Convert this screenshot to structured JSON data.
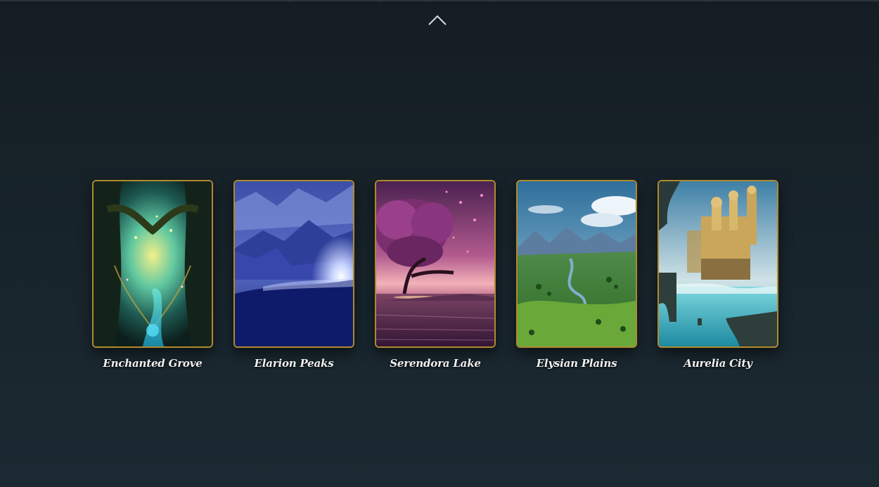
{
  "page": {
    "background_color": "#17232a",
    "frame_color": "#b08a2e",
    "label_color": "#f1f1f1"
  },
  "toggle": {
    "icon": "chevron-up-icon"
  },
  "cards": [
    {
      "label": "Enchanted Grove",
      "image": "enchanted-forest-image"
    },
    {
      "label": "Elarion Peaks",
      "image": "blue-mountains-image"
    },
    {
      "label": "Serendora Lake",
      "image": "blossom-tree-lake-image"
    },
    {
      "label": "Elysian Plains",
      "image": "green-valley-river-image"
    },
    {
      "label": "Aurelia City",
      "image": "golden-city-waterfall-image"
    }
  ]
}
